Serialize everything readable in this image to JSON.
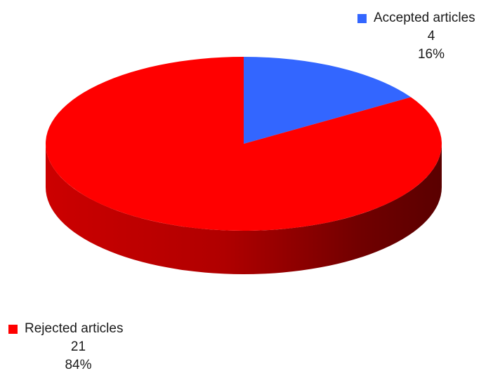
{
  "chart_data": {
    "type": "pie",
    "title": "",
    "categories": [
      "Accepted articles",
      "Rejected articles"
    ],
    "values": [
      4,
      21
    ],
    "percentages": [
      "16%",
      "84%"
    ],
    "value_labels": [
      "4",
      "21"
    ],
    "colors": [
      "#3366ff",
      "#ff0000"
    ],
    "style": "3d",
    "legend": "none",
    "labels_position": "outside"
  }
}
